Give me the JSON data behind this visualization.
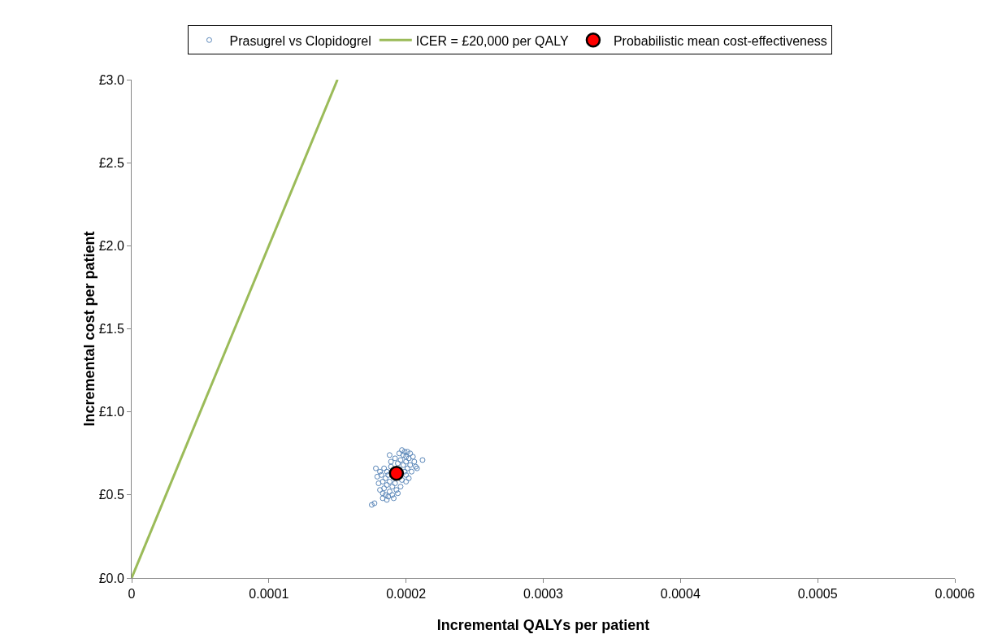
{
  "chart_data": {
    "type": "scatter",
    "xlabel": "Incremental QALYs per patient",
    "ylabel": "Incremental cost per patient",
    "xlim": [
      0,
      0.0006
    ],
    "xticks": [
      0,
      0.0001,
      0.0002,
      0.0003,
      0.0004,
      0.0005,
      0.0006
    ],
    "ylim": [
      0,
      3
    ],
    "yticks": [
      {
        "value": 0,
        "label": "£0.0"
      },
      {
        "value": 0.5,
        "label": "£0.5"
      },
      {
        "value": 1,
        "label": "£1.0"
      },
      {
        "value": 1.5,
        "label": "£1.5"
      },
      {
        "value": 2,
        "label": "£2.0"
      },
      {
        "value": 2.5,
        "label": "£2.5"
      },
      {
        "value": 3,
        "label": "£3.0"
      }
    ],
    "grid": false,
    "legend": "top",
    "marker": "circle",
    "series": [
      {
        "name": "Prasugrel vs Clopidogrel",
        "color": "#5b87b9",
        "x": [
          0.000188,
          0.000198,
          0.000186,
          0.0002,
          0.000184,
          0.000202,
          0.000187,
          0.000199,
          0.000185,
          0.000201,
          0.000189,
          0.000197,
          0.000192,
          0.000194,
          0.000183,
          0.000203,
          0.000186,
          0.0002,
          0.00019,
          0.000196,
          0.000188,
          0.000198,
          0.000182,
          0.000204,
          0.000193,
          0.000195,
          0.000185,
          0.000201,
          0.00018,
          0.000206,
          0.000187,
          0.000199,
          0.000181,
          0.000205,
          0.00019,
          0.000197,
          0.000184,
          0.000202,
          0.000179,
          0.000207,
          0.000178,
          0.000212,
          0.000175,
          0.000177,
          0.000191,
          0.000194,
          0.000183,
          0.000186,
          0.000203,
          0.0002,
          0.000189,
          0.000192,
          0.000188,
          0.000196,
          0.000181,
          0.000208,
          0.000183,
          0.0002
        ],
        "values": [
          0.58,
          0.68,
          0.56,
          0.7,
          0.54,
          0.72,
          0.62,
          0.64,
          0.6,
          0.66,
          0.67,
          0.59,
          0.57,
          0.69,
          0.58,
          0.68,
          0.64,
          0.62,
          0.55,
          0.71,
          0.52,
          0.74,
          0.62,
          0.64,
          0.53,
          0.75,
          0.5,
          0.76,
          0.57,
          0.7,
          0.49,
          0.76,
          0.53,
          0.73,
          0.5,
          0.77,
          0.66,
          0.6,
          0.61,
          0.67,
          0.66,
          0.71,
          0.44,
          0.45,
          0.48,
          0.51,
          0.51,
          0.47,
          0.75,
          0.73,
          0.7,
          0.72,
          0.74,
          0.55,
          0.64,
          0.66,
          0.48,
          0.58
        ]
      },
      {
        "name": "ICER = £20,000 per QALY",
        "type": "line",
        "color": "#9bbb59",
        "marker": "none",
        "line_style": "solid",
        "x": [
          0,
          0.00015
        ],
        "values": [
          0,
          3
        ]
      },
      {
        "name": "Probabilistic mean cost-effectiveness",
        "color": "#ff0000",
        "x": [
          0.000193
        ],
        "values": [
          0.63
        ]
      }
    ]
  }
}
